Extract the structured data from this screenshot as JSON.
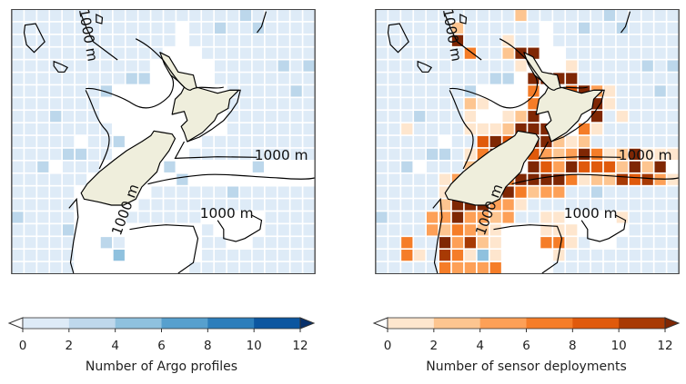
{
  "cell_colors": {
    "a": "#deebf7",
    "b": "#bcd7eb",
    "c": "#8fc1de",
    "1": "#fee6ce",
    "2": "#fdc590",
    "3": "#fda057",
    "4": "#f57d28",
    "5": "#e05a0c",
    "6": "#a83a04",
    "7": "#7f2704"
  },
  "land_color": "#efeedc",
  "contour_labels": [
    "1000 m",
    "1000 m",
    "1000 m",
    "1000 m"
  ],
  "panels": [
    {
      "id": "argo",
      "colorbar": {
        "label": "Number of Argo profiles",
        "ticks": [
          "0",
          "2",
          "4",
          "6",
          "8",
          "10",
          "12"
        ],
        "colors": [
          "#deebf7",
          "#bfd8ec",
          "#8fc1de",
          "#57a0ce",
          "#2d7ebb",
          "#0c56a0"
        ],
        "over_color": "#08306b",
        "under_color": "#ffffff"
      },
      "grid": [
        "aaaaaaaaaaaaaaaaaabaaaaa",
        "aaaaaaaaaaaaa.aabaabaaaa",
        "aaaaaaaaaaaaa.aaaaaaaaaa",
        "aaaaaaaaaaaa...aaaaaaaaa",
        "aaaaaaaaaaa.....aaaaabab",
        "aaaaaaaaabb.....aaaaaaaa",
        "aaaaaaab.........aaaaaba",
        "aaaaaaa..........aaaaaaa",
        "aaabaaa..........aaaaaaa",
        "aaaaaaaa.........aaaaaaa",
        "aaaaa.aab......aaaaaaaaa",
        "aaaabbaa......aaaaaaaaaa",
        "aab.aaa.....b......b....",
        "aaaaaa.......b..........",
        "aaaaa......aaaaaabaaaaaa",
        "aaaaa.....aaaaaaaaaaaaaa",
        "baaaa....aaaaaa.....aaaa",
        "aaaab..........a....aaaa",
        "aaaaa..ba......aa..aaaaa",
        "aaaaa...c......aaaaaaaaa",
        "aaaaa.........aaaaaaaaaa"
      ]
    },
    {
      "id": "sensor",
      "colorbar": {
        "label": "Number of sensor deployments",
        "ticks": [
          "0",
          "2",
          "4",
          "6",
          "8",
          "10",
          "12"
        ],
        "colors": [
          "#fee6ce",
          "#fdc590",
          "#fda057",
          "#f57d28",
          "#e05a0c",
          "#a83a04"
        ],
        "over_color": "#7f2704",
        "under_color": "#ffffff"
      },
      "overlay": [
        "-----------2------------",
        "------2-----------------",
        "------7---1-------------",
        "-------4--277-----------",
        "-----------1---1--------",
        "------------7777--------",
        "------------4--5731-----",
        "-------21---4---671-----",
        "-------1--127----7-1----",
        "--1----1112777--41------",
        "--------575-77212-------",
        "-------1475-532374127111",
        "-------276--75375552727-",
        "-----137--47777412265631",
        "-----12---74233---------",
        "-----2777331------------",
        "----3373323--11----1----",
        "----324321---111--------",
        "--4--73621---441--------",
        "--41-641-1----1---------",
        "-----43334--------------"
      ]
    }
  ]
}
